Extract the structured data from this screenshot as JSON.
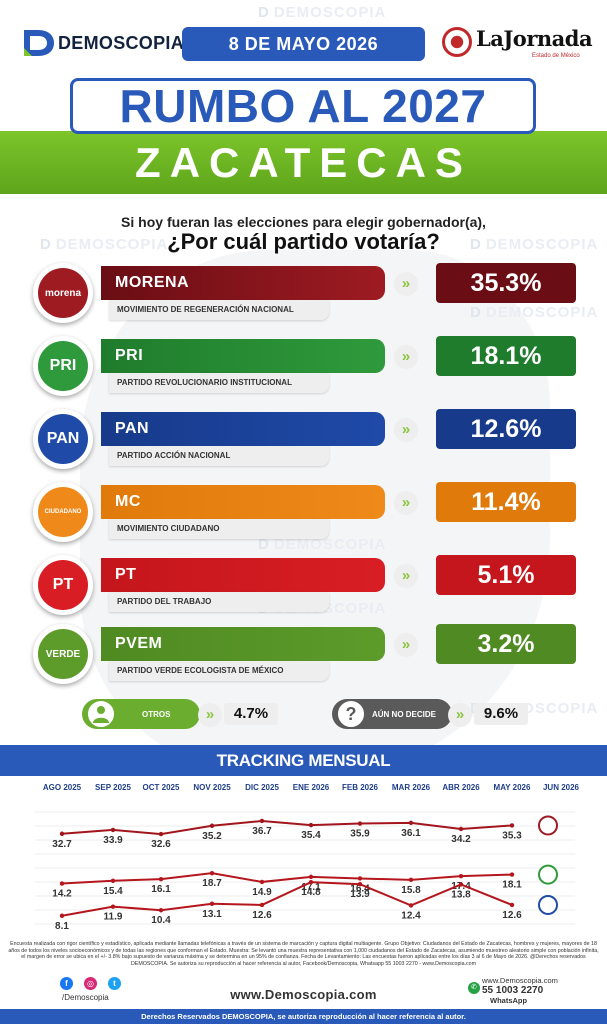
{
  "header": {
    "brand": "DEMOSCOPIA",
    "date": "8 DE MAYO 2026",
    "partner_name": "LaJornada",
    "partner_sub": "Estado de México"
  },
  "title": "RUMBO AL 2027",
  "subtitle": "ZACATECAS",
  "question_line1": "Si hoy fueran las elecciones para elegir gobernador(a),",
  "question_line2": "¿Por cuál partido votaría?",
  "watermark": "DEMOSCOPIA",
  "parties": [
    {
      "abbr": "MORENA",
      "full": "MOVIMIENTO DE REGENERACIÓN NACIONAL",
      "value": "35.3%",
      "logo_text": "morena",
      "color": "#9e1b22",
      "color_dark": "#6a0d14"
    },
    {
      "abbr": "PRI",
      "full": "PARTIDO REVOLUCIONARIO INSTITUCIONAL",
      "value": "18.1%",
      "logo_text": "PRI",
      "color": "#2f9a3c",
      "color_dark": "#1f7c2c"
    },
    {
      "abbr": "PAN",
      "full": "PARTIDO ACCIÓN NACIONAL",
      "value": "12.6%",
      "logo_text": "PAN",
      "color": "#1f4aa8",
      "color_dark": "#173a8a"
    },
    {
      "abbr": "MC",
      "full": "MOVIMIENTO CIUDADANO",
      "value": "11.4%",
      "logo_text": "CIUDADANO",
      "color": "#ef8a1a",
      "color_dark": "#e07a0a"
    },
    {
      "abbr": "PT",
      "full": "PARTIDO DEL TRABAJO",
      "value": "5.1%",
      "logo_text": "PT",
      "color": "#d81e24",
      "color_dark": "#c4161c"
    },
    {
      "abbr": "PVEM",
      "full": "PARTIDO VERDE ECOLOGISTA DE MÉXICO",
      "value": "3.2%",
      "logo_text": "VERDE",
      "color": "#5d9b2b",
      "color_dark": "#4f8a22"
    }
  ],
  "otros": {
    "label": "OTROS",
    "value": "4.7%",
    "icon": "user-icon",
    "color": "#6aad2f"
  },
  "aun_no_decide": {
    "label": "AÚN NO DECIDE",
    "value": "9.6%",
    "icon": "question-icon",
    "color": "#5a5a5a"
  },
  "tracking_title": "TRACKING MENSUAL",
  "chart_data": {
    "type": "line",
    "title": "TRACKING MENSUAL",
    "categories": [
      "AGO 2025",
      "SEP 2025",
      "OCT 2025",
      "NOV 2025",
      "DIC 2025",
      "ENE 2026",
      "FEB 2026",
      "MAR 2026",
      "ABR 2026",
      "MAY 2026",
      "JUN 2026"
    ],
    "series": [
      {
        "name": "MORENA",
        "values": [
          32.7,
          33.9,
          32.6,
          35.2,
          36.7,
          35.4,
          35.9,
          36.1,
          34.2,
          35.3,
          null
        ],
        "color": "#a3151c"
      },
      {
        "name": "PRI",
        "values": [
          14.2,
          15.4,
          16.1,
          18.7,
          14.9,
          17.1,
          16.4,
          15.8,
          17.4,
          18.1,
          null
        ],
        "color": "#b5161d"
      },
      {
        "name": "PAN",
        "values": [
          8.1,
          11.9,
          10.4,
          13.1,
          12.6,
          14.8,
          13.9,
          12.4,
          13.8,
          12.6,
          null
        ],
        "color": "#b5161d"
      }
    ],
    "ylim": [
      0,
      40
    ],
    "grid": true,
    "legend": "right"
  },
  "footer": {
    "methodology": "Encuesta realizada con rigor científico y estadístico, aplicada mediante llamadas telefónicas a través de un sistema de marcación y captura digital multiagente. Grupo Objetivo: Ciudadanos del Estado de Zacatecas, hombres y mujeres, mayores de 18 años de todos los niveles socioeconómicos y de todas las regiones que conforman el Estado. Muestra: Se levantó una muestra representativa con 1,000 ciudadanos del Estado de Zacatecas, asumiendo muestreo aleatorio simple con población infinita, el margen de error se ubica en el +/- 3.8% bajo supuesto de varianza máxima y se determina en un 95% de confianza. Fecha de Levantamiento: Las encuestas fueron aplicadas entre los días 3 al 6 de Mayo de 2026. @Derechos reservados DEMOSCOPIA. Se autoriza su reproducción al hacer referencia al autor, Facebook/Demoscopia, Whatsapp 55 1003 2270 - www.Demoscopia.com",
    "handle": "/Demoscopia",
    "site": "www.Demoscopia.com",
    "contact_web": "www.Demoscopia.com",
    "phone": "55 1003 2270",
    "whatsapp": "WhatsApp",
    "rights": "Derechos Reservados DEMOSCOPIA, se autoriza reproducción al hacer referencia al autor."
  }
}
